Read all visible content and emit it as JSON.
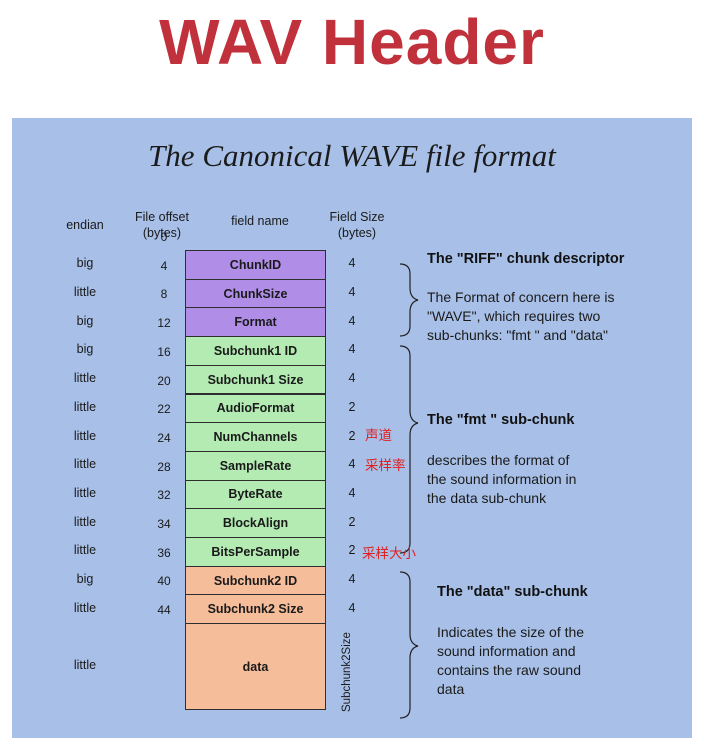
{
  "page_title": "WAV Header",
  "diagram_title": "The Canonical WAVE file format",
  "headers": {
    "endian": "endian",
    "offset": "File offset\n(bytes)",
    "field_name": "field name",
    "field_size": "Field Size\n(bytes)"
  },
  "offsets": [
    "0",
    "4",
    "8",
    "12",
    "16",
    "20",
    "22",
    "24",
    "28",
    "32",
    "34",
    "36",
    "40",
    "44"
  ],
  "fields": [
    {
      "name": "ChunkID",
      "endian": "big",
      "size": "4",
      "chunk": "riff"
    },
    {
      "name": "ChunkSize",
      "endian": "little",
      "size": "4",
      "chunk": "riff"
    },
    {
      "name": "Format",
      "endian": "big",
      "size": "4",
      "chunk": "riff"
    },
    {
      "name": "Subchunk1 ID",
      "endian": "big",
      "size": "4",
      "chunk": "fmt"
    },
    {
      "name": "Subchunk1 Size",
      "endian": "little",
      "size": "4",
      "chunk": "fmt"
    },
    {
      "name": "AudioFormat",
      "endian": "little",
      "size": "2",
      "chunk": "fmt"
    },
    {
      "name": "NumChannels",
      "endian": "little",
      "size": "2",
      "chunk": "fmt"
    },
    {
      "name": "SampleRate",
      "endian": "little",
      "size": "4",
      "chunk": "fmt"
    },
    {
      "name": "ByteRate",
      "endian": "little",
      "size": "4",
      "chunk": "fmt"
    },
    {
      "name": "BlockAlign",
      "endian": "little",
      "size": "2",
      "chunk": "fmt"
    },
    {
      "name": "BitsPerSample",
      "endian": "little",
      "size": "2",
      "chunk": "fmt"
    },
    {
      "name": "Subchunk2 ID",
      "endian": "big",
      "size": "4",
      "chunk": "data"
    },
    {
      "name": "Subchunk2 Size",
      "endian": "little",
      "size": "4",
      "chunk": "data"
    },
    {
      "name": "data",
      "endian": "little",
      "size": "Subchunk2Size",
      "chunk": "data"
    }
  ],
  "descriptions": {
    "riff_title": "The \"RIFF\" chunk descriptor",
    "riff_body": "The Format of concern here is\n\"WAVE\", which requires two\nsub-chunks: \"fmt \" and \"data\"",
    "fmt_title": "The \"fmt \" sub-chunk",
    "fmt_body": "describes the format of\nthe sound information in\nthe data sub-chunk",
    "data_title": "The \"data\" sub-chunk",
    "data_body": "Indicates the size of the\nsound information and\ncontains the raw sound\ndata"
  },
  "annotations": {
    "channels": "声道",
    "sample_rate": "采样率",
    "bits_per_sample": "采样大小"
  },
  "colors": {
    "title_red": "#c0313c",
    "panel_blue": "#a8c0e8",
    "riff": "#b08ee8",
    "fmt": "#b3ebb3",
    "data": "#f5bd9a",
    "annotation_red": "#e01f1f"
  }
}
